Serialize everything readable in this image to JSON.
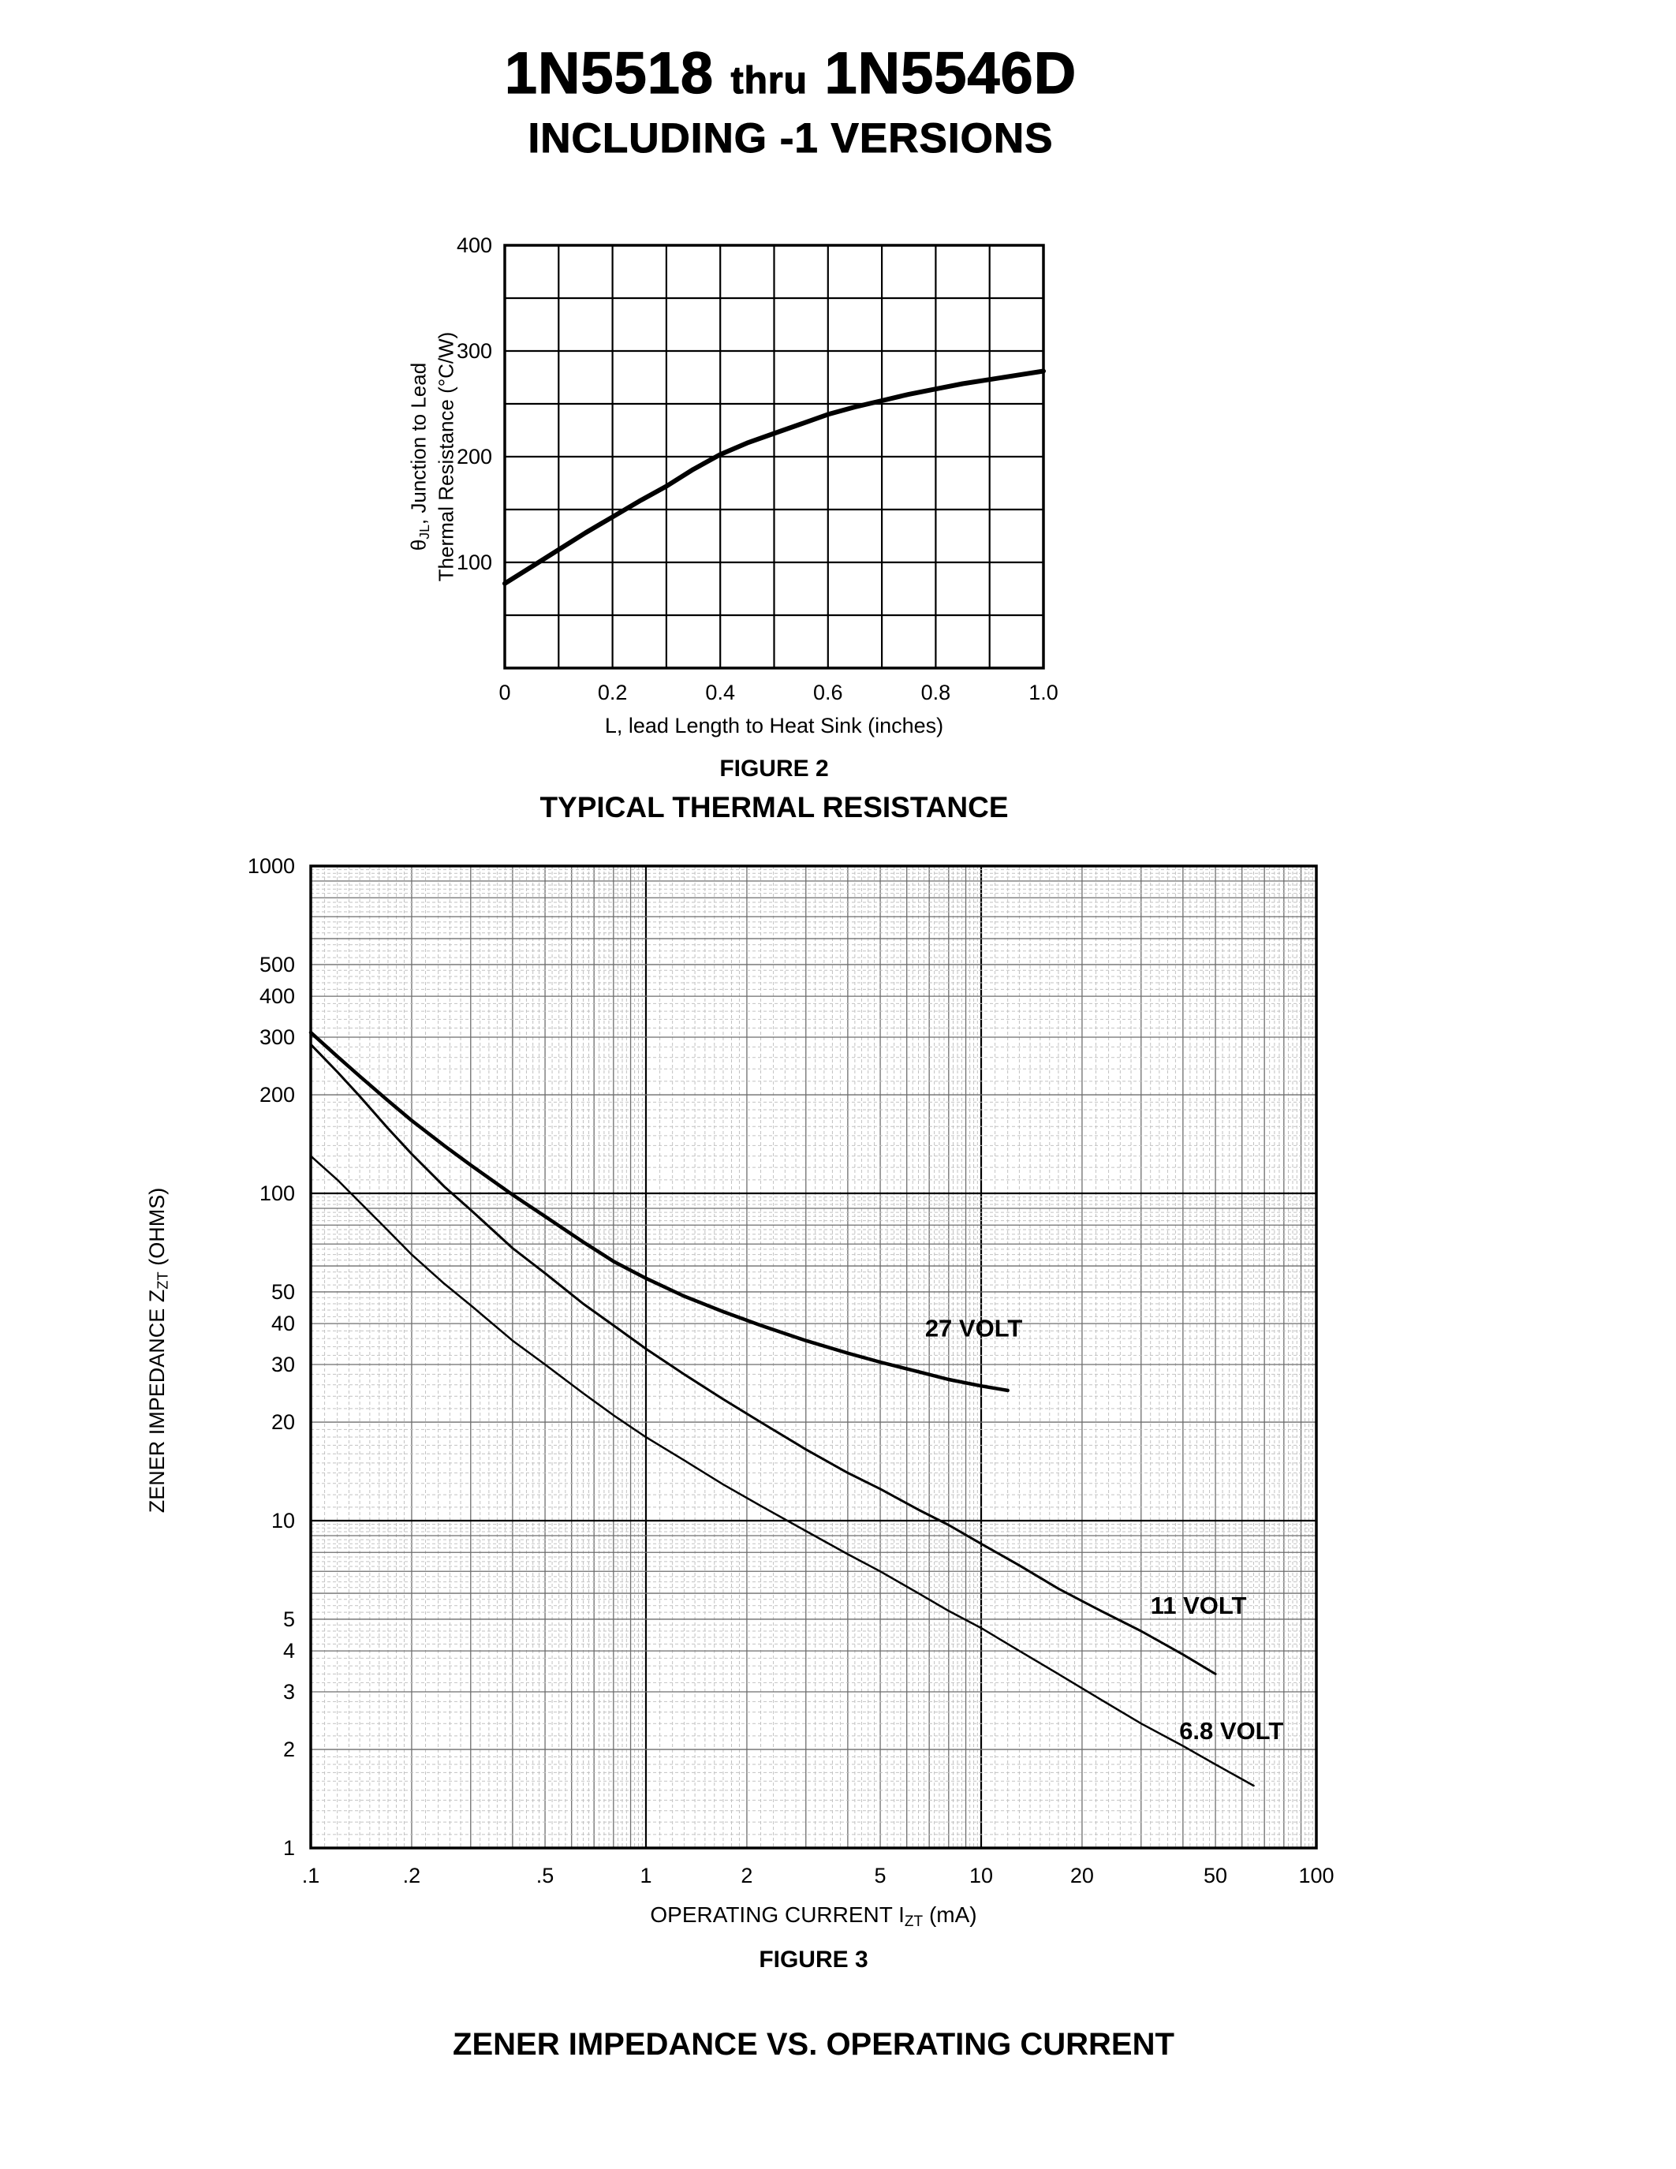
{
  "header": {
    "title_part1": "1N5518",
    "title_thru": "thru",
    "title_part2": "1N5546D",
    "subtitle": "INCLUDING -1 VERSIONS"
  },
  "chart_data": [
    {
      "type": "line",
      "figure_label": "FIGURE 2",
      "title": "TYPICAL THERMAL RESISTANCE",
      "xlabel": "L, lead Length to Heat Sink (inches)",
      "ylabel": "θJL, Junction to Lead Thermal Resistance (°C/W)",
      "ylabel_parts": {
        "line1_pre": "θ",
        "line1_sub": "JL",
        "line1_post": ", Junction to Lead",
        "line2": "Thermal Resistance (°C/W)"
      },
      "x_scale": "linear",
      "y_scale": "linear",
      "xlim": [
        0,
        1.0
      ],
      "ylim": [
        0,
        400
      ],
      "x_grid_step": 0.1,
      "y_grid_step": 50,
      "x_ticks": [
        0,
        0.2,
        0.4,
        0.6,
        0.8,
        1.0
      ],
      "x_tick_labels": [
        "0",
        "0.2",
        "0.4",
        "0.6",
        "0.8",
        "1.0"
      ],
      "y_ticks": [
        100,
        200,
        300,
        400
      ],
      "grid": true,
      "legend": "none",
      "series": [
        {
          "name": "thermal-resistance-curve",
          "x": [
            0,
            0.05,
            0.1,
            0.15,
            0.2,
            0.25,
            0.3,
            0.35,
            0.4,
            0.45,
            0.5,
            0.55,
            0.6,
            0.65,
            0.7,
            0.75,
            0.8,
            0.85,
            0.9,
            0.95,
            1.0
          ],
          "y": [
            80,
            96,
            112,
            128,
            143,
            158,
            172,
            188,
            202,
            213,
            222,
            231,
            240,
            247,
            253,
            259,
            264,
            269,
            273,
            277,
            281
          ]
        }
      ]
    },
    {
      "type": "line",
      "figure_label": "FIGURE 3",
      "title": "ZENER IMPEDANCE VS. OPERATING CURRENT",
      "xlabel": "OPERATING CURRENT IZT (mA)",
      "xlabel_parts": {
        "pre": "OPERATING CURRENT I",
        "sub": "ZT",
        "post": " (mA)"
      },
      "ylabel": "ZENER IMPEDANCE ZZT (OHMS)",
      "ylabel_parts": {
        "pre": "ZENER IMPEDANCE Z",
        "sub": "ZT",
        "post": " (OHMS)"
      },
      "x_scale": "log",
      "y_scale": "log",
      "xlim": [
        0.1,
        100
      ],
      "ylim": [
        1,
        1000
      ],
      "x_tick_values": [
        0.1,
        0.2,
        0.5,
        1,
        2,
        5,
        10,
        20,
        50,
        100
      ],
      "x_tick_labels": [
        ".1",
        ".2",
        ".5",
        "1",
        "2",
        "5",
        "10",
        "20",
        "50",
        "100"
      ],
      "y_tick_values": [
        1000,
        500,
        400,
        300,
        200,
        100,
        50,
        40,
        30,
        20,
        10,
        5,
        4,
        3,
        2,
        1
      ],
      "grid": true,
      "legend": "inline-curve-labels",
      "series": [
        {
          "name": "27 VOLT",
          "label_at": [
            6.8,
            36.5
          ],
          "x": [
            0.1,
            0.12,
            0.14,
            0.17,
            0.2,
            0.25,
            0.3,
            0.4,
            0.5,
            0.65,
            0.8,
            1,
            1.3,
            1.7,
            2.2,
            3,
            4,
            5,
            6.5,
            8,
            10,
            12
          ],
          "y": [
            310,
            262,
            228,
            192,
            167,
            140,
            122,
            99,
            85,
            71,
            62,
            55,
            48.5,
            43.5,
            39.5,
            35.5,
            32.5,
            30.5,
            28.5,
            27,
            25.8,
            25
          ]
        },
        {
          "name": "11 VOLT",
          "label_at": [
            32,
            5.2
          ],
          "x": [
            0.1,
            0.12,
            0.14,
            0.17,
            0.2,
            0.25,
            0.3,
            0.4,
            0.5,
            0.65,
            0.8,
            1,
            1.3,
            1.7,
            2.2,
            3,
            4,
            5,
            6.5,
            8,
            10,
            13,
            17,
            22,
            30,
            40,
            50
          ],
          "y": [
            285,
            235,
            198,
            158,
            132,
            105,
            89,
            68,
            57,
            46,
            39.5,
            33.5,
            28,
            23.5,
            20,
            16.5,
            14,
            12.5,
            10.8,
            9.7,
            8.5,
            7.3,
            6.2,
            5.4,
            4.6,
            3.9,
            3.4
          ]
        },
        {
          "name": "6.8 VOLT",
          "label_at": [
            39,
            2.15
          ],
          "x": [
            0.1,
            0.12,
            0.14,
            0.17,
            0.2,
            0.25,
            0.3,
            0.4,
            0.5,
            0.65,
            0.8,
            1,
            1.3,
            1.7,
            2.2,
            3,
            4,
            5,
            6.5,
            8,
            10,
            13,
            17,
            22,
            30,
            40,
            50,
            65
          ],
          "y": [
            130,
            110,
            94,
            77,
            65,
            53,
            45.5,
            35.5,
            30,
            24.5,
            21,
            18,
            15.3,
            12.9,
            11.1,
            9.3,
            7.9,
            7,
            6,
            5.3,
            4.7,
            4,
            3.4,
            2.9,
            2.4,
            2.05,
            1.8,
            1.55
          ]
        }
      ]
    }
  ]
}
